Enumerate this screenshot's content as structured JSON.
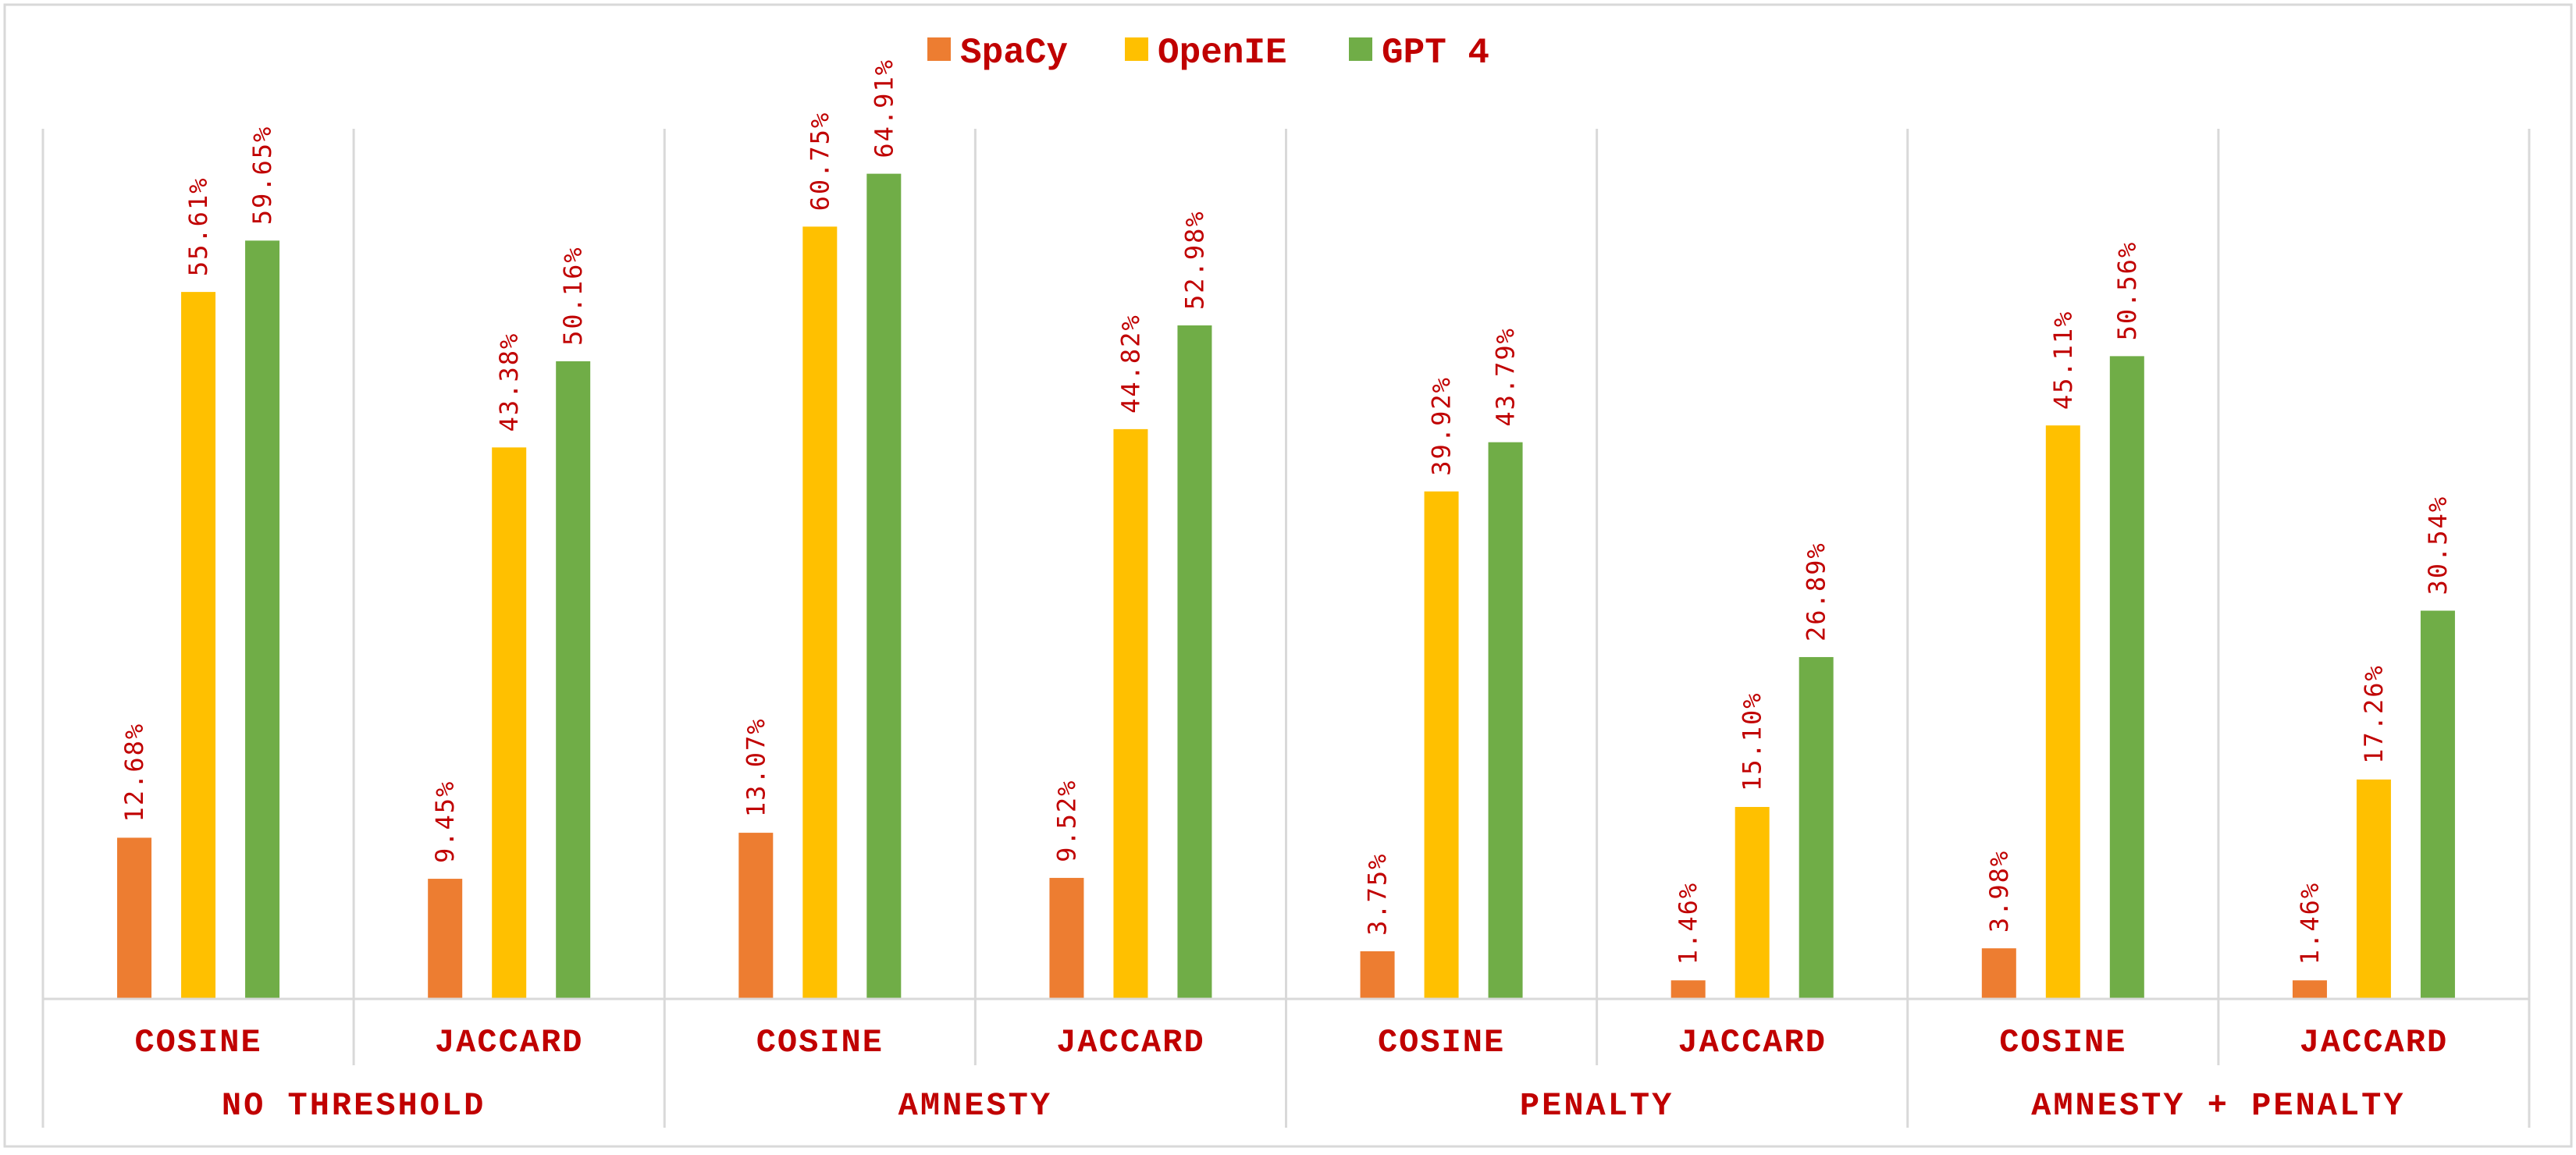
{
  "chart_data": {
    "type": "bar",
    "title": "",
    "xlabel": "",
    "ylabel": "",
    "ylim": [
      0,
      70
    ],
    "grid": false,
    "legend_position": "top-center",
    "value_suffix": "%",
    "groups": [
      "NO THRESHOLD",
      "AMNESTY",
      "PENALTY",
      "AMNESTY + PENALTY"
    ],
    "categories": [
      "COSINE",
      "JACCARD",
      "COSINE",
      "JACCARD",
      "COSINE",
      "JACCARD",
      "COSINE",
      "JACCARD"
    ],
    "series": [
      {
        "name": "SpaCy",
        "color": "#ED7D31",
        "values": [
          12.68,
          9.45,
          13.07,
          9.52,
          3.75,
          1.46,
          3.98,
          1.46
        ]
      },
      {
        "name": "OpenIE",
        "color": "#FFC000",
        "values": [
          55.61,
          43.38,
          60.75,
          44.82,
          39.92,
          15.1,
          45.11,
          17.26
        ]
      },
      {
        "name": "GPT 4",
        "color": "#70AD47",
        "values": [
          59.65,
          50.16,
          64.91,
          52.98,
          43.79,
          26.89,
          50.56,
          30.54
        ]
      }
    ]
  },
  "colors": {
    "text": "#C00000",
    "axis": "#D9D9D9",
    "border": "#D9D9D9"
  }
}
